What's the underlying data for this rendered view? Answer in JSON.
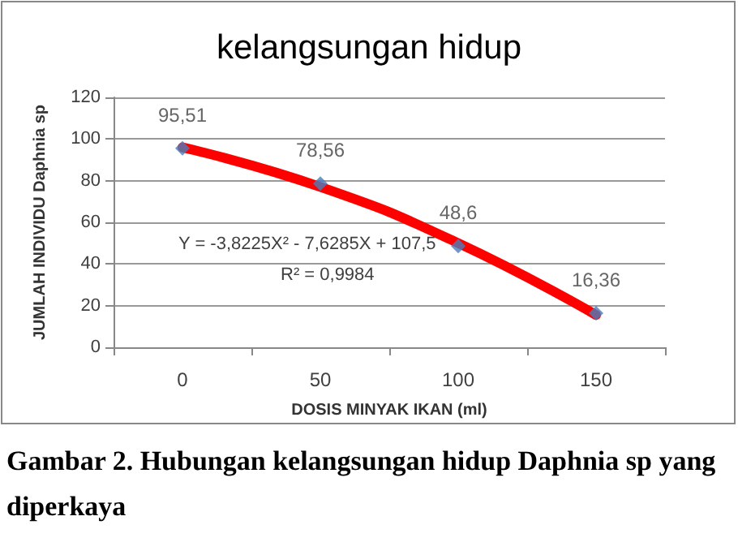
{
  "chart_data": {
    "type": "scatter",
    "title": "kelangsungan hidup",
    "xlabel": "DOSIS MINYAK IKAN (ml)",
    "ylabel": "JUMLAH INDIVIDU Daphnia sp",
    "categories": [
      "0",
      "50",
      "100",
      "150"
    ],
    "series": [
      {
        "color": "#4a7ebb",
        "marker": "diamond",
        "values": [
          95.51,
          78.56,
          48.6,
          16.36
        ],
        "value_labels": [
          "95,51",
          "78,56",
          "48,6",
          "16,36"
        ]
      },
      {
        "type": "line",
        "color": "#ff0000",
        "marker": "none",
        "values": [
          96,
          77,
          50,
          15.5
        ]
      }
    ],
    "ylim": [
      0,
      120
    ],
    "yticks": [
      0,
      20,
      40,
      60,
      80,
      100,
      120
    ],
    "grid": "y",
    "annotations": [
      "Y = -3,8225X² - 7,6285X + 107,5",
      "R² = 0,9984",
      "Gambar 2. Hubungan kelangsungan hidup Daphnia sp yang diperkaya"
    ]
  }
}
